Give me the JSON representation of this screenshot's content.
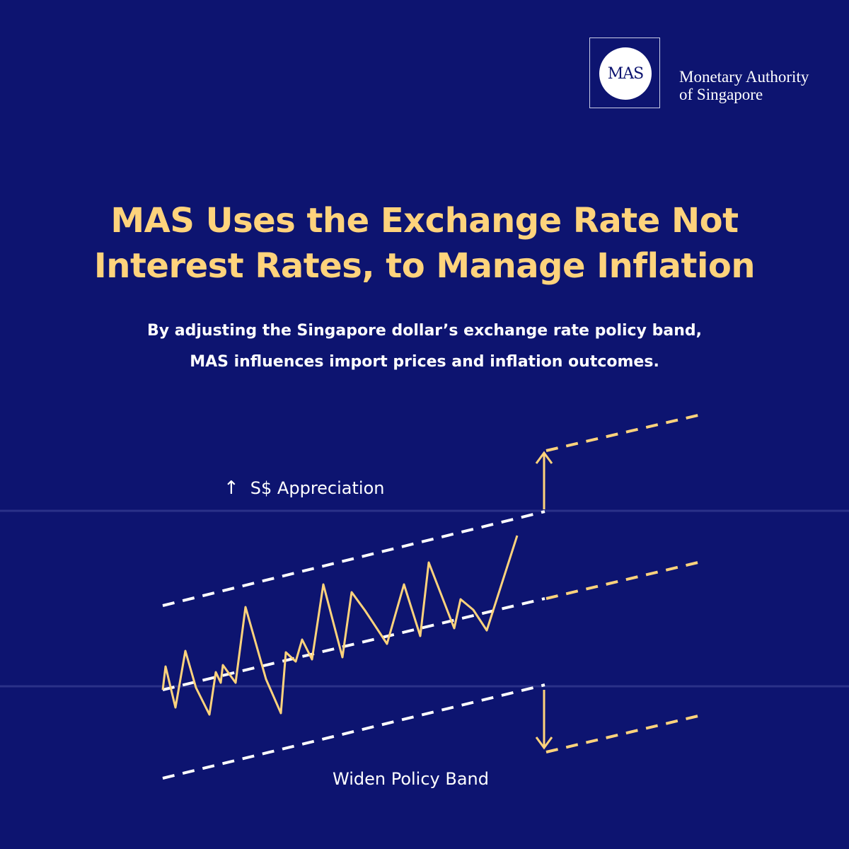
{
  "logo": {
    "emblem_text": "MAS",
    "org_line1": "Monetary Authority",
    "org_line2": "of Singapore"
  },
  "title": {
    "line1": "MAS Uses the Exchange Rate Not",
    "line2": "Interest Rates, to Manage Inflation"
  },
  "subtitle": {
    "line1": "By adjusting the Singapore dollar’s exchange rate policy band,",
    "line2": "MAS influences import prices and inflation outcomes."
  },
  "diagram": {
    "appreciation_label": "S$ Appreciation",
    "widen_label": "Widen Policy Band",
    "colors": {
      "background": "#0d1470",
      "accent": "#fed37c",
      "band": "#ffffff"
    }
  }
}
